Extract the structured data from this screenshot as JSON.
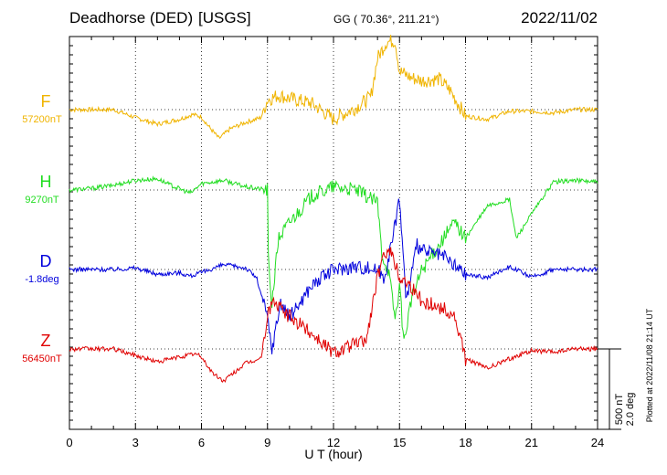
{
  "header": {
    "station": "Deadhorse (DED)",
    "network": "[USGS]",
    "coords": "GG ( 70.36°, 211.21°)",
    "date": "2022/11/02"
  },
  "scale_bar": {
    "line1": "500 nT",
    "line2": "2.0 deg"
  },
  "plot_note": "Plotted at 2022/11/08 21:14 UT",
  "chart_data": {
    "type": "line",
    "xlabel": "U T (hour)",
    "xlim": [
      0,
      24
    ],
    "xticks": [
      0,
      3,
      6,
      9,
      12,
      15,
      18,
      21,
      24
    ],
    "tick_labels": [
      "0",
      "3",
      "6",
      "9",
      "12",
      "15",
      "18",
      "21",
      "24"
    ],
    "grid": true,
    "units": "deviation from baseline, nT (D in deg); scale 500 nT = 2.0 deg",
    "series": [
      {
        "name": "F",
        "baseline_label": "57200nT",
        "color": "#f0b400",
        "points": [
          [
            0,
            0
          ],
          [
            2,
            0
          ],
          [
            3,
            -50
          ],
          [
            4,
            -90
          ],
          [
            5,
            -60
          ],
          [
            5.6,
            -30
          ],
          [
            6,
            -45
          ],
          [
            6.3,
            -100
          ],
          [
            6.8,
            -180
          ],
          [
            7.3,
            -120
          ],
          [
            8,
            -80
          ],
          [
            8.7,
            -50
          ],
          [
            9,
            60
          ],
          [
            9.5,
            90
          ],
          [
            10,
            70
          ],
          [
            11,
            40
          ],
          [
            12,
            -60
          ],
          [
            13,
            10
          ],
          [
            13.7,
            80
          ],
          [
            14,
            320
          ],
          [
            14.4,
            420
          ],
          [
            14.8,
            430
          ],
          [
            15,
            240
          ],
          [
            15.5,
            200
          ],
          [
            16,
            180
          ],
          [
            16.8,
            190
          ],
          [
            17.3,
            120
          ],
          [
            18,
            -40
          ],
          [
            19,
            -60
          ],
          [
            20,
            -10
          ],
          [
            21,
            -10
          ],
          [
            22,
            -20
          ],
          [
            23,
            0
          ],
          [
            24,
            0
          ]
        ]
      },
      {
        "name": "H",
        "baseline_label": "9270nT",
        "color": "#22dd22",
        "points": [
          [
            0,
            0
          ],
          [
            1,
            10
          ],
          [
            2,
            30
          ],
          [
            3,
            60
          ],
          [
            4,
            70
          ],
          [
            4.6,
            30
          ],
          [
            5.5,
            -20
          ],
          [
            6,
            40
          ],
          [
            7,
            60
          ],
          [
            8,
            20
          ],
          [
            9,
            0
          ],
          [
            9.05,
            -500
          ],
          [
            9.2,
            -700
          ],
          [
            9.5,
            -300
          ],
          [
            10,
            -200
          ],
          [
            11,
            -40
          ],
          [
            12,
            20
          ],
          [
            13,
            0
          ],
          [
            14,
            -80
          ],
          [
            14.2,
            -400
          ],
          [
            14.5,
            -500
          ],
          [
            14.8,
            -800
          ],
          [
            15,
            -600
          ],
          [
            15.2,
            -950
          ],
          [
            15.5,
            -700
          ],
          [
            16,
            -500
          ],
          [
            16.5,
            -400
          ],
          [
            17,
            -300
          ],
          [
            17.5,
            -200
          ],
          [
            18,
            -300
          ],
          [
            19,
            -100
          ],
          [
            20,
            -60
          ],
          [
            20.3,
            -300
          ],
          [
            21,
            -150
          ],
          [
            22,
            50
          ],
          [
            23,
            60
          ],
          [
            24,
            50
          ]
        ]
      },
      {
        "name": "D",
        "baseline_label": "-1.8deg",
        "color": "#0000dd",
        "points": [
          [
            0,
            0
          ],
          [
            2,
            0
          ],
          [
            3,
            10
          ],
          [
            4,
            -30
          ],
          [
            5,
            -20
          ],
          [
            5.5,
            -40
          ],
          [
            6,
            -20
          ],
          [
            7,
            30
          ],
          [
            8,
            10
          ],
          [
            8.5,
            -50
          ],
          [
            9,
            -300
          ],
          [
            9.2,
            -500
          ],
          [
            9.6,
            -200
          ],
          [
            10,
            -300
          ],
          [
            11,
            -100
          ],
          [
            12,
            0
          ],
          [
            13,
            20
          ],
          [
            14,
            0
          ],
          [
            14.3,
            -50
          ],
          [
            14.7,
            200
          ],
          [
            15,
            450
          ],
          [
            15.3,
            -200
          ],
          [
            15.8,
            150
          ],
          [
            16,
            120
          ],
          [
            17,
            80
          ],
          [
            18,
            -30
          ],
          [
            19,
            -50
          ],
          [
            20,
            20
          ],
          [
            21,
            -50
          ],
          [
            22,
            0
          ],
          [
            23,
            0
          ],
          [
            24,
            0
          ]
        ]
      },
      {
        "name": "Z",
        "baseline_label": "56450nT",
        "color": "#e00000",
        "points": [
          [
            0,
            0
          ],
          [
            2,
            0
          ],
          [
            3,
            -40
          ],
          [
            4,
            -80
          ],
          [
            5,
            -50
          ],
          [
            5.7,
            -30
          ],
          [
            6,
            -50
          ],
          [
            6.5,
            -150
          ],
          [
            7,
            -200
          ],
          [
            8,
            -90
          ],
          [
            8.7,
            -60
          ],
          [
            9,
            200
          ],
          [
            9.2,
            300
          ],
          [
            10,
            200
          ],
          [
            11,
            100
          ],
          [
            12,
            -20
          ],
          [
            13,
            30
          ],
          [
            13.5,
            60
          ],
          [
            14,
            450
          ],
          [
            14.5,
            650
          ],
          [
            15,
            450
          ],
          [
            15.5,
            400
          ],
          [
            16,
            300
          ],
          [
            17,
            250
          ],
          [
            17.5,
            200
          ],
          [
            18,
            -60
          ],
          [
            19,
            -120
          ],
          [
            20,
            -60
          ],
          [
            21,
            -10
          ],
          [
            22,
            -20
          ],
          [
            23,
            0
          ],
          [
            24,
            0
          ]
        ]
      }
    ]
  }
}
